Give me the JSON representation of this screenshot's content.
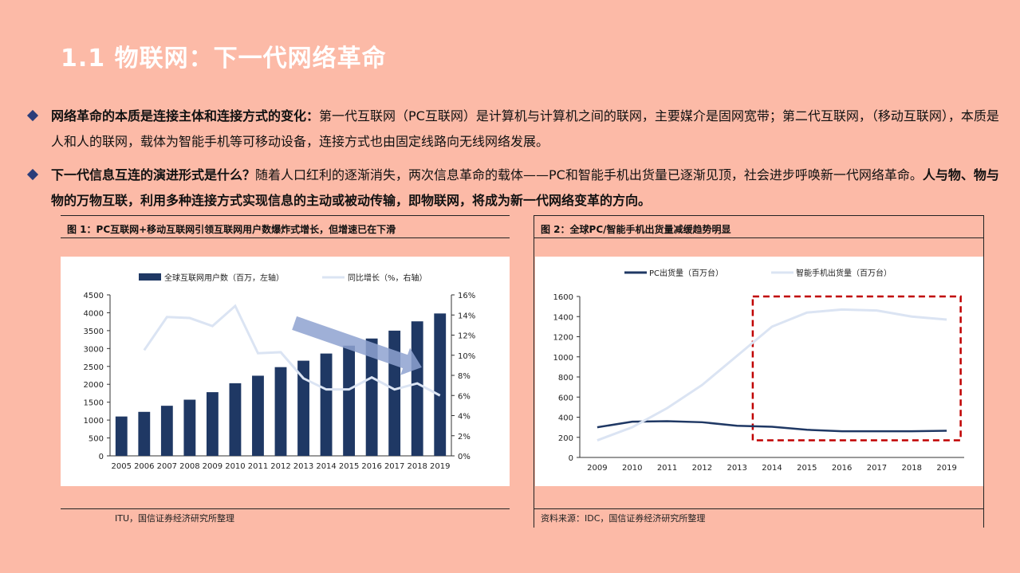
{
  "page": {
    "title": "1.1 物联网：下一代网络革命",
    "bullets": [
      {
        "bold": "网络革命的本质是连接主体和连接方式的变化：",
        "text": "第一代互联网（PC互联网）是计算机与计算机之间的联网，主要媒介是固网宽带；第二代互联网，（移动互联网），本质是人和人的联网，载体为智能手机等可移动设备，连接方式也由固定线路向无线网络发展。"
      },
      {
        "bold": "下一代信息互连的演进形式是什么？",
        "text": "随着人口红利的逐渐消失，两次信息革命的载体——PC和智能手机出货量已逐渐见顶，社会进步呼唤新一代网络革命。",
        "bold_tail": "人与物、物与物的万物互联，利用多种连接方式实现信息的主动或被动传输，即物联网，将成为新一代网络变革的方向。"
      }
    ]
  },
  "chart_data": [
    {
      "type": "bar",
      "figure_title": "图 1：PC互联网+移动互联网引领互联网用户数爆炸式增长，但增速已在下滑",
      "source": "ITU，国信证券经济研究所整理",
      "categories": [
        "2005",
        "2006",
        "2007",
        "2008",
        "2009",
        "2010",
        "2011",
        "2012",
        "2013",
        "2014",
        "2015",
        "2016",
        "2017",
        "2018",
        "2019"
      ],
      "series": [
        {
          "name": "全球互联网用户数（百万，左轴）",
          "axis": "left",
          "kind": "bar",
          "color": "#1f3864",
          "values": [
            1100,
            1230,
            1400,
            1570,
            1780,
            2030,
            2240,
            2480,
            2660,
            2860,
            3080,
            3280,
            3500,
            3760,
            3980
          ]
        },
        {
          "name": "同比增长（%，右轴）",
          "axis": "right",
          "kind": "line",
          "color": "#dbe4f3",
          "values": [
            null,
            10.5,
            13.8,
            13.7,
            12.9,
            14.9,
            10.2,
            10.3,
            7.7,
            6.6,
            6.6,
            7.8,
            6.6,
            7.2,
            6.0
          ]
        }
      ],
      "yleft": {
        "min": 0,
        "max": 4500,
        "ticks": [
          "0",
          "500",
          "1000",
          "1500",
          "2000",
          "2500",
          "3000",
          "3500",
          "4000",
          "4500"
        ]
      },
      "yright": {
        "min": 0,
        "max": 16,
        "ticks": [
          "0%",
          "2%",
          "4%",
          "6%",
          "8%",
          "10%",
          "12%",
          "14%",
          "16%"
        ]
      },
      "annotation": "trend-arrow-down",
      "legend_position": "top"
    },
    {
      "type": "line",
      "figure_title": "图 2：全球PC/智能手机出货量减缓趋势明显",
      "source": "资料来源：IDC，国信证券经济研究所整理",
      "categories": [
        "2009",
        "2010",
        "2011",
        "2012",
        "2013",
        "2014",
        "2015",
        "2016",
        "2017",
        "2018",
        "2019"
      ],
      "series": [
        {
          "name": "PC出货量（百万台）",
          "color": "#1f3864",
          "values": [
            300,
            355,
            360,
            350,
            315,
            305,
            275,
            260,
            260,
            260,
            265
          ]
        },
        {
          "name": "智能手机出货量（百万台）",
          "color": "#dbe4f3",
          "values": [
            170,
            300,
            490,
            720,
            1010,
            1300,
            1440,
            1470,
            1460,
            1400,
            1370
          ]
        }
      ],
      "ylim": [
        0,
        1600
      ],
      "yticks": [
        "0",
        "200",
        "400",
        "600",
        "800",
        "1000",
        "1200",
        "1400",
        "1600"
      ],
      "highlight_box": {
        "from": "2014",
        "to": "2019",
        "color": "#c00000",
        "style": "dashed"
      },
      "legend_position": "top"
    }
  ]
}
